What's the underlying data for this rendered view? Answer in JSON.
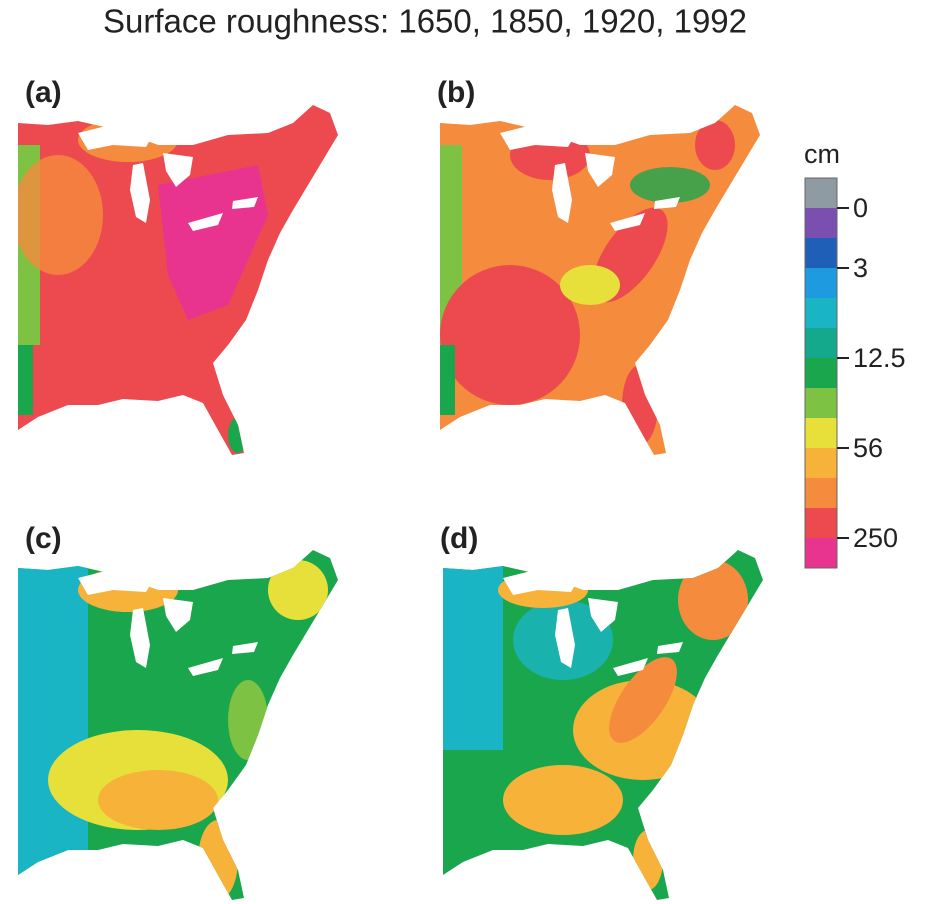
{
  "title": "Surface roughness: 1650, 1850, 1920, 1992",
  "panels": [
    {
      "label": "(a)"
    },
    {
      "label": "(b)"
    },
    {
      "label": "(c)"
    },
    {
      "label": "(d)"
    }
  ],
  "legend": {
    "unit": "cm",
    "colors": [
      "#8f9ba3",
      "#7b4fb0",
      "#1f5fb8",
      "#1e9be0",
      "#1ab5c4",
      "#14a88c",
      "#1aa64d",
      "#7dc242",
      "#e8e03a",
      "#f7b23a",
      "#f58b3c",
      "#ec4a4f",
      "#e8348f"
    ],
    "ticks": [
      0,
      3,
      12.5,
      56,
      250
    ]
  }
}
